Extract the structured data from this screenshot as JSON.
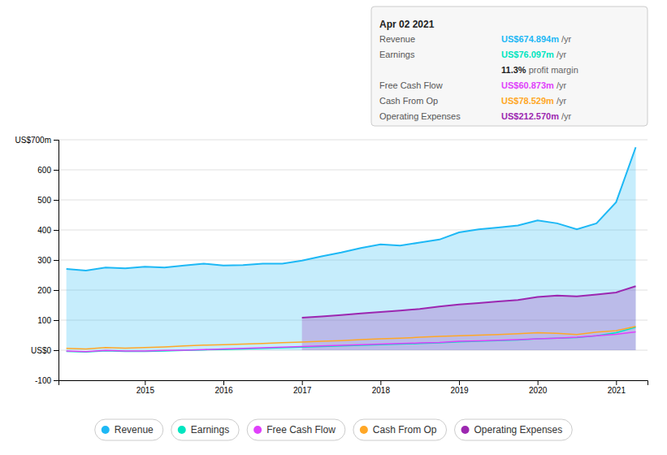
{
  "chart_data": {
    "type": "line",
    "x": [
      2014.0,
      2014.25,
      2014.5,
      2014.75,
      2015.0,
      2015.25,
      2015.5,
      2015.75,
      2016.0,
      2016.25,
      2016.5,
      2016.75,
      2017.0,
      2017.25,
      2017.5,
      2017.75,
      2018.0,
      2018.25,
      2018.5,
      2018.75,
      2019.0,
      2019.25,
      2019.5,
      2019.75,
      2020.0,
      2020.25,
      2020.5,
      2020.75,
      2021.0,
      2021.25
    ],
    "xlim": [
      2013.9,
      2021.4
    ],
    "xticks": [
      2015,
      2016,
      2017,
      2018,
      2019,
      2020,
      2021
    ],
    "ylim": [
      -100,
      700
    ],
    "yticks": [
      -100,
      {
        "value": 0,
        "label": "US$0"
      },
      100,
      200,
      300,
      400,
      500,
      600,
      {
        "value": 700,
        "label": "US$700m"
      }
    ],
    "grid": true,
    "legend": "bottom",
    "series": [
      {
        "name": "Revenue",
        "type": "area",
        "color": "#1db8f5",
        "values": [
          270,
          265,
          275,
          272,
          278,
          275,
          282,
          288,
          282,
          283,
          288,
          288,
          298,
          312,
          325,
          340,
          352,
          348,
          358,
          368,
          392,
          402,
          408,
          415,
          432,
          422,
          402,
          422,
          492,
          675
        ]
      },
      {
        "name": "Earnings",
        "type": "line",
        "color": "#00e5c0",
        "values": [
          -4,
          -6,
          -2,
          -4,
          -4,
          -3,
          -1,
          1,
          2,
          4,
          6,
          8,
          10,
          12,
          14,
          16,
          18,
          20,
          22,
          24,
          28,
          30,
          32,
          34,
          38,
          40,
          42,
          48,
          58,
          76
        ]
      },
      {
        "name": "Free Cash Flow",
        "type": "line",
        "color": "#e040fb",
        "values": [
          -3,
          -5,
          -1,
          -3,
          -3,
          -1,
          0,
          2,
          4,
          6,
          8,
          10,
          12,
          14,
          16,
          18,
          20,
          22,
          24,
          26,
          30,
          31,
          33,
          35,
          38,
          40,
          43,
          48,
          53,
          61
        ]
      },
      {
        "name": "Cash From Op",
        "type": "line",
        "color": "#ffa726",
        "values": [
          6,
          4,
          9,
          7,
          9,
          11,
          14,
          17,
          18,
          20,
          22,
          25,
          27,
          30,
          32,
          35,
          38,
          40,
          43,
          46,
          48,
          50,
          52,
          55,
          58,
          56,
          52,
          60,
          65,
          79
        ]
      },
      {
        "name": "Operating Expenses",
        "type": "area",
        "color": "#9c27b0",
        "values": [
          null,
          null,
          null,
          null,
          null,
          null,
          null,
          null,
          null,
          null,
          null,
          null,
          108,
          112,
          117,
          122,
          127,
          132,
          137,
          145,
          152,
          157,
          162,
          167,
          177,
          182,
          179,
          185,
          192,
          213
        ]
      }
    ],
    "annotations": [
      {
        "text": "Apr 02 2021"
      },
      {
        "label": "Revenue",
        "text": "US$674.894m",
        "suffix": " /yr",
        "color": "#1db8f5"
      },
      {
        "label": "Earnings",
        "text": "US$76.097m",
        "suffix": " /yr",
        "color": "#00e5c0"
      },
      {
        "text": "11.3%",
        "suffix": " profit margin"
      },
      {
        "label": "Free Cash Flow",
        "text": "US$60.873m",
        "suffix": " /yr",
        "color": "#e040fb"
      },
      {
        "label": "Cash From Op",
        "text": "US$78.529m",
        "suffix": " /yr",
        "color": "#ffa726"
      },
      {
        "label": "Operating Expenses",
        "text": "US$212.570m",
        "suffix": " /yr",
        "color": "#9c27b0"
      }
    ]
  }
}
